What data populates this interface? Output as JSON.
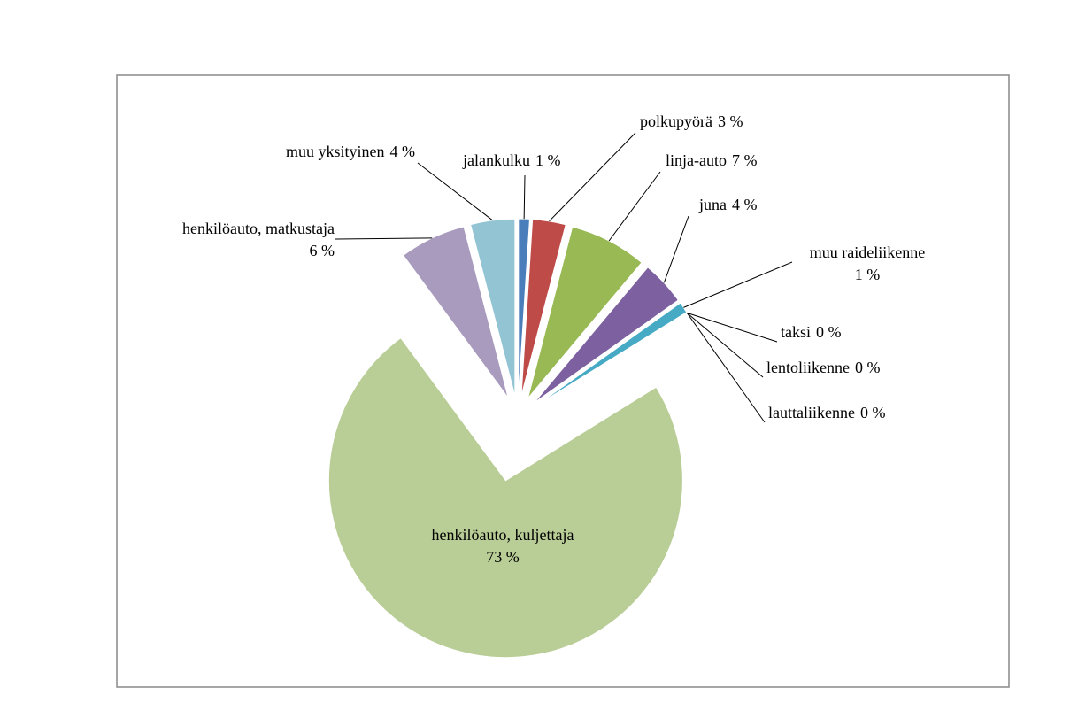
{
  "chart_data": {
    "type": "pie",
    "categories": [
      "jalankulku",
      "polkupyörä",
      "linja-auto",
      "juna",
      "muu raideliikenne",
      "taksi",
      "lentoliikenne",
      "lauttaliikenne",
      "henkilöauto, kuljettaja",
      "henkilöauto, matkustaja",
      "muu yksityinen"
    ],
    "values": [
      1,
      3,
      7,
      4,
      1,
      0,
      0,
      0,
      73,
      6,
      4
    ],
    "value_labels": [
      "1 %",
      "3 %",
      "7 %",
      "4 %",
      "1 %",
      "0 %",
      "0 %",
      "0 %",
      "73 %",
      "6 %",
      "4 %"
    ],
    "colors": [
      "#4a7ebb",
      "#be4b48",
      "#98b954",
      "#7d60a0",
      "#46aac5",
      "#f79646",
      "#2c4d75",
      "#772c2a",
      "#b9cd96",
      "#a99bbd",
      "#93c4d4"
    ]
  }
}
